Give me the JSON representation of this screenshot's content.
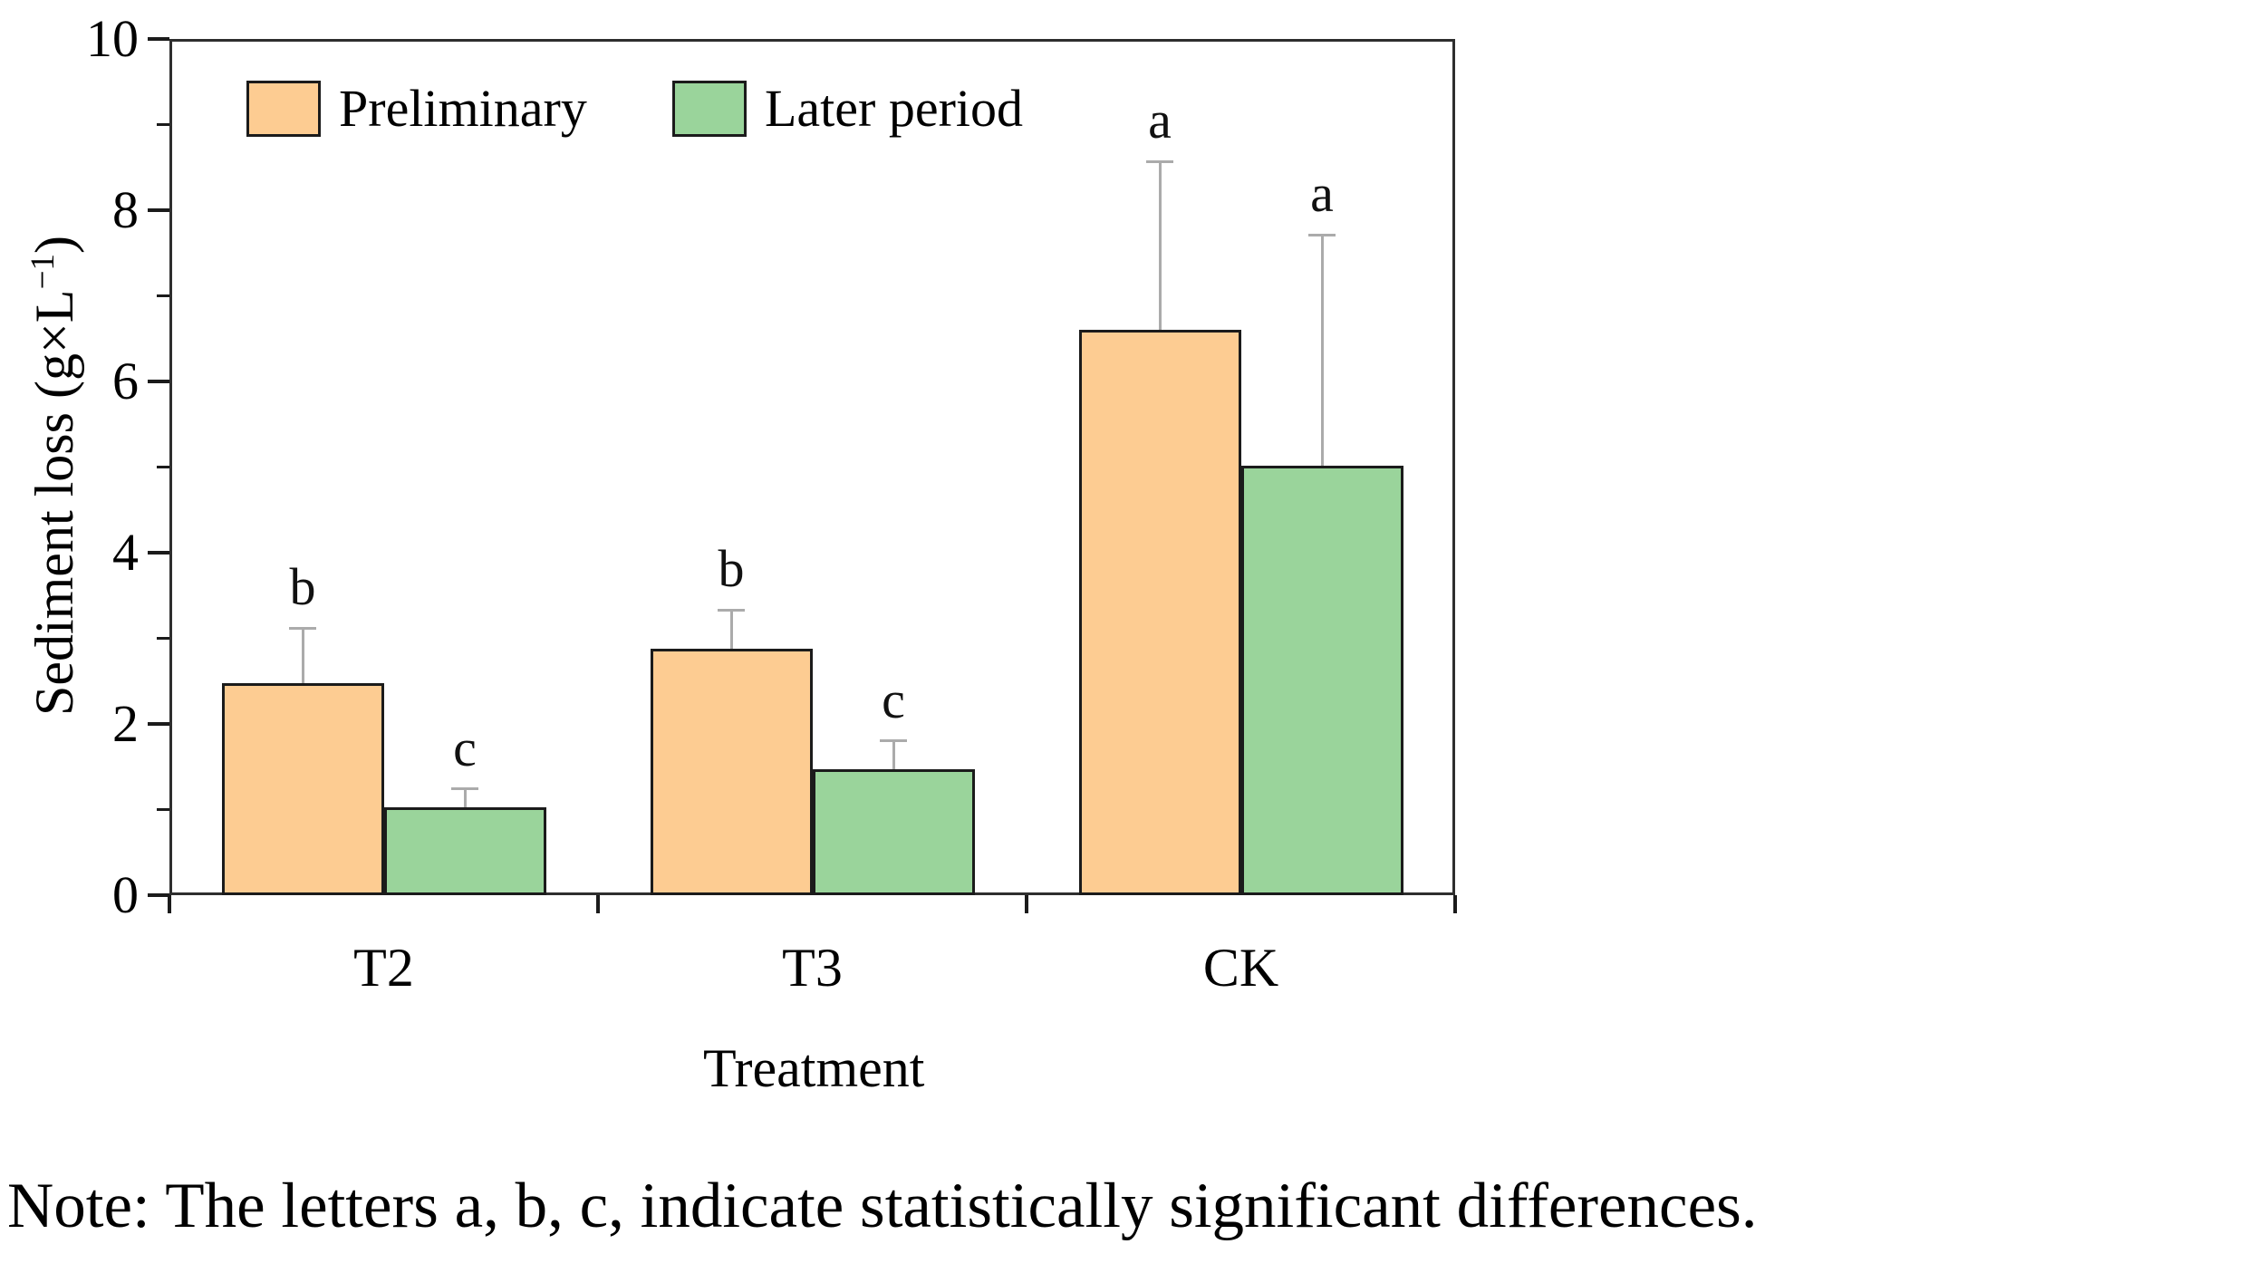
{
  "note": "Note: The letters a, b, c, indicate statistically significant differences.",
  "chart_data": {
    "type": "bar",
    "title": "",
    "categories": [
      "T2",
      "T3",
      "CK"
    ],
    "series": [
      {
        "name": "Preliminary",
        "color": "#FDCC92",
        "values": [
          2.48,
          2.88,
          6.6
        ],
        "errors_plus": [
          0.64,
          0.45,
          1.97
        ],
        "sig_letters": [
          "b",
          "b",
          "a"
        ]
      },
      {
        "name": "Later period",
        "color": "#9AD49B",
        "values": [
          1.03,
          1.47,
          5.02
        ],
        "errors_plus": [
          0.21,
          0.33,
          2.69
        ],
        "sig_letters": [
          "c",
          "c",
          "a"
        ]
      }
    ],
    "xlabel": "Treatment",
    "ylabel_prefix": "Sediment loss (g×L",
    "ylabel_sup": "−1",
    "ylabel_suffix": ")",
    "ylim": [
      0,
      10
    ],
    "yticks": [
      0,
      2,
      4,
      6,
      8,
      10
    ],
    "ytick_minor_step": 1,
    "grid": false,
    "legend_position": "top-left-inside",
    "error_bar_color": "#ABABAB",
    "bar_edge_color": "#1B1B1B"
  }
}
